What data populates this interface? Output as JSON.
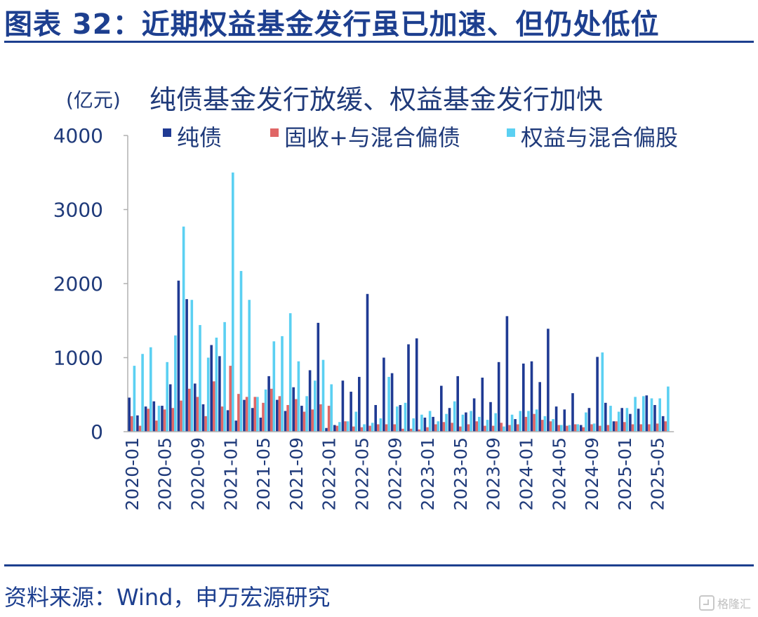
{
  "header": {
    "title": "图表 32：近期权益基金发行虽已加速、但仍处低位"
  },
  "footer": {
    "source": "资料来源：Wind，申万宏源研究",
    "watermark": "格隆汇"
  },
  "colors": {
    "brand": "#1d3f8f",
    "series_pure_bond": "#1f3a93",
    "series_fixed_plus": "#e06666",
    "series_equity": "#5bd0f2"
  },
  "chart_data": {
    "type": "bar",
    "title": "纯债基金发行放缓、权益基金发行加快",
    "ylabel": "(亿元)",
    "xlabel": "",
    "ylim": [
      0,
      4000
    ],
    "yticks": [
      0,
      1000,
      2000,
      3000,
      4000
    ],
    "legend_position": "top",
    "grid": false,
    "xtick_labels": [
      "2020-01",
      "2020-05",
      "2020-09",
      "2021-01",
      "2021-05",
      "2021-09",
      "2022-01",
      "2022-05",
      "2022-09",
      "2023-01",
      "2023-05",
      "2023-09",
      "2024-01",
      "2024-05",
      "2024-09",
      "2025-01",
      "2025-05"
    ],
    "categories": [
      "2020-01",
      "2020-02",
      "2020-03",
      "2020-04",
      "2020-05",
      "2020-06",
      "2020-07",
      "2020-08",
      "2020-09",
      "2020-10",
      "2020-11",
      "2020-12",
      "2021-01",
      "2021-02",
      "2021-03",
      "2021-04",
      "2021-05",
      "2021-06",
      "2021-07",
      "2021-08",
      "2021-09",
      "2021-10",
      "2021-11",
      "2021-12",
      "2022-01",
      "2022-02",
      "2022-03",
      "2022-04",
      "2022-05",
      "2022-06",
      "2022-07",
      "2022-08",
      "2022-09",
      "2022-10",
      "2022-11",
      "2022-12",
      "2023-01",
      "2023-02",
      "2023-03",
      "2023-04",
      "2023-05",
      "2023-06",
      "2023-07",
      "2023-08",
      "2023-09",
      "2023-10",
      "2023-11",
      "2023-12",
      "2024-01",
      "2024-02",
      "2024-03",
      "2024-04",
      "2024-05",
      "2024-06",
      "2024-07",
      "2024-08",
      "2024-09",
      "2024-10",
      "2024-11",
      "2024-12",
      "2025-01",
      "2025-02",
      "2025-03",
      "2025-04",
      "2025-05",
      "2025-06",
      "2025-07",
      "2025-08"
    ],
    "series": [
      {
        "name": "纯债",
        "values": [
          460,
          220,
          340,
          410,
          350,
          640,
          2040,
          1790,
          650,
          370,
          1170,
          1020,
          290,
          150,
          430,
          320,
          190,
          750,
          430,
          280,
          600,
          350,
          830,
          1470,
          50,
          90,
          690,
          540,
          740,
          1860,
          360,
          1000,
          790,
          360,
          1180,
          1260,
          190,
          200,
          620,
          320,
          750,
          260,
          450,
          730,
          400,
          940,
          1560,
          170,
          920,
          950,
          670,
          1390,
          340,
          300,
          520,
          90,
          320,
          1010,
          390,
          140,
          320,
          240,
          310,
          490,
          360,
          210,
          0,
          0
        ]
      },
      {
        "name": "固收+与混合偏债",
        "values": [
          210,
          80,
          310,
          150,
          300,
          320,
          420,
          580,
          470,
          210,
          680,
          340,
          890,
          510,
          470,
          470,
          390,
          580,
          480,
          360,
          440,
          270,
          300,
          370,
          350,
          80,
          140,
          70,
          60,
          80,
          100,
          100,
          100,
          40,
          40,
          30,
          60,
          100,
          130,
          120,
          70,
          100,
          140,
          80,
          80,
          120,
          90,
          100,
          200,
          240,
          160,
          140,
          90,
          80,
          100,
          60,
          100,
          80,
          90,
          140,
          130,
          100,
          100,
          100,
          110,
          140,
          0,
          0
        ]
      },
      {
        "name": "权益与混合偏股",
        "values": [
          890,
          1050,
          1140,
          350,
          940,
          1300,
          2770,
          1780,
          1440,
          1000,
          1270,
          1480,
          3500,
          2170,
          1780,
          470,
          570,
          1220,
          1290,
          1600,
          950,
          480,
          690,
          970,
          640,
          130,
          140,
          270,
          100,
          120,
          180,
          740,
          340,
          390,
          180,
          230,
          280,
          140,
          240,
          410,
          230,
          280,
          200,
          160,
          250,
          70,
          230,
          280,
          280,
          300,
          210,
          170,
          90,
          90,
          100,
          260,
          110,
          1070,
          350,
          270,
          320,
          470,
          480,
          450,
          450,
          610,
          0,
          0
        ]
      }
    ]
  }
}
